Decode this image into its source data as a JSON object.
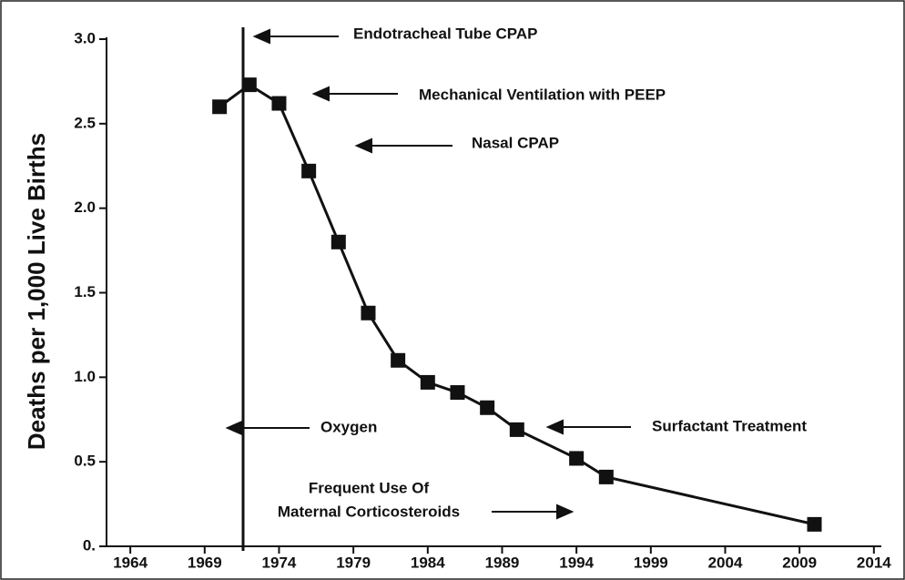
{
  "chart_data": {
    "type": "line",
    "y_label": "Deaths per 1,000 Live Births",
    "x": [
      1970,
      1972,
      1974,
      1976,
      1978,
      1980,
      1982,
      1984,
      1986,
      1988,
      1990,
      1994,
      1996,
      2010
    ],
    "series": [
      {
        "name": "Deaths per 1,000 Live Births",
        "color": "#111111",
        "values": [
          2.6,
          2.73,
          2.62,
          2.22,
          1.8,
          1.38,
          1.1,
          0.97,
          0.91,
          0.82,
          0.69,
          0.52,
          0.41,
          0.13
        ]
      }
    ],
    "xlim": [
      1962.4,
      2014.5
    ],
    "xticks": [
      1964,
      1969,
      1974,
      1979,
      1984,
      1989,
      1994,
      1999,
      2004,
      2009,
      2014
    ],
    "ylim": [
      0,
      3
    ],
    "yticks": [
      {
        "value": 0,
        "label": "0."
      },
      0.5,
      {
        "value": 1,
        "label": "1.0"
      },
      1.5,
      {
        "value": 2,
        "label": "2.0"
      },
      2.5,
      {
        "value": 3,
        "label": "3.0"
      }
    ],
    "annotations": [
      "Endotracheal Tube CPAP",
      "Mechanical Ventilation with PEEP",
      "Nasal CPAP",
      "Oxygen",
      "Surfactant Treatment",
      "Frequent Use Of",
      "Maternal Corticosteroids"
    ],
    "grid": false
  }
}
